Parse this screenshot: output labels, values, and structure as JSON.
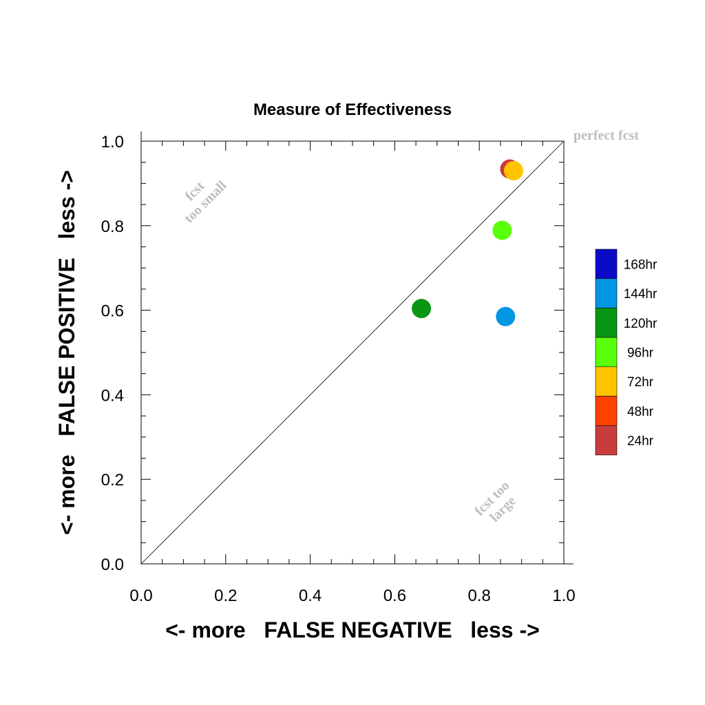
{
  "chart_data": {
    "type": "scatter",
    "title": "Measure of Effectiveness",
    "xlabel": "<- more   FALSE NEGATIVE   less ->",
    "ylabel": "<- more   FALSE POSITIVE   less ->",
    "xlim": [
      0,
      1
    ],
    "ylim": [
      0,
      1
    ],
    "xticks": [
      "0.0",
      "0.2",
      "0.4",
      "0.6",
      "0.8",
      "1.0"
    ],
    "yticks": [
      "0.0",
      "0.2",
      "0.4",
      "0.6",
      "0.8",
      "1.0"
    ],
    "grid": false,
    "diagonal_line": true,
    "annotations": {
      "perfect": "perfect fcst",
      "too_small_1": "fcst",
      "too_small_2": "too small",
      "too_large_1": "fcst too",
      "too_large_2": "large"
    },
    "legend_position": "right",
    "legend": [
      {
        "label": "168hr",
        "color": "#0a0ac8"
      },
      {
        "label": "144hr",
        "color": "#0096e1"
      },
      {
        "label": "120hr",
        "color": "#0a9614"
      },
      {
        "label": "96hr",
        "color": "#5aff0a"
      },
      {
        "label": "72hr",
        "color": "#ffc300"
      },
      {
        "label": "48hr",
        "color": "#ff4100"
      },
      {
        "label": "24hr",
        "color": "#c83c3c"
      }
    ],
    "points": [
      {
        "label": "24hr",
        "x": 0.872,
        "y": 0.934,
        "color": "#c83c3c"
      },
      {
        "label": "72hr",
        "x": 0.881,
        "y": 0.93,
        "color": "#ffc300"
      },
      {
        "label": "96hr",
        "x": 0.854,
        "y": 0.789,
        "color": "#5aff0a"
      },
      {
        "label": "120hr",
        "x": 0.663,
        "y": 0.604,
        "color": "#0a9614"
      },
      {
        "label": "144hr",
        "x": 0.862,
        "y": 0.585,
        "color": "#0096e1"
      }
    ]
  }
}
